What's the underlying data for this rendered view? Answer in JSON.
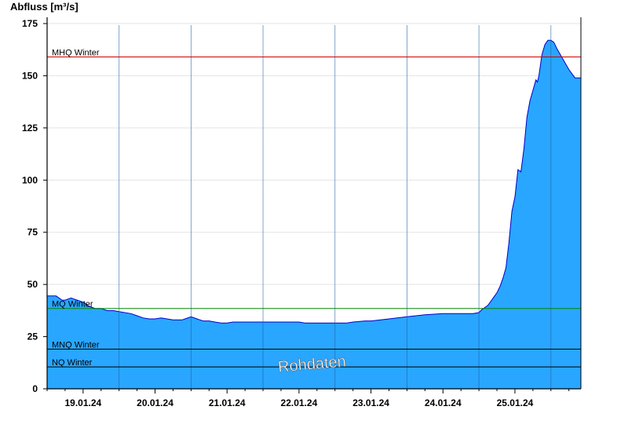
{
  "chart_data": {
    "type": "area",
    "ylabel": "Abfluss [m³/s]",
    "xlabel": "",
    "title": "",
    "ylim": [
      0,
      180
    ],
    "yticks": [
      0,
      25,
      50,
      75,
      100,
      125,
      150,
      175
    ],
    "x_start": "18.01.24 12:00",
    "x_end": "25.01.24 18:00",
    "day_labels": [
      "19.01.24",
      "20.01.24",
      "21.01.24",
      "22.01.24",
      "23.01.24",
      "24.01.24",
      "25.01.24"
    ],
    "grid": true,
    "series": [
      {
        "color": "#29a6ff",
        "edge_color": "#0000cc",
        "x_hours": [
          0,
          3,
          5,
          6,
          8,
          10,
          12,
          14,
          16,
          18,
          20,
          22,
          24,
          28,
          30,
          32,
          34,
          36,
          38,
          42,
          45,
          46,
          48,
          50,
          52,
          54,
          56,
          58,
          60,
          62,
          66,
          70,
          72,
          78,
          84,
          86,
          88,
          92,
          96,
          100,
          102,
          106,
          108,
          114,
          120,
          126,
          132,
          134,
          136,
          138,
          140,
          142,
          144,
          145,
          146,
          147,
          148,
          149,
          150,
          151,
          152,
          153,
          154,
          155,
          156,
          157,
          158,
          159,
          160,
          161,
          162,
          163,
          163.5,
          164,
          165,
          166,
          167,
          168,
          169,
          170
        ],
        "values": [
          44.5,
          44.5,
          42.5,
          42.5,
          43.5,
          42.5,
          41.5,
          39.5,
          38.5,
          38.5,
          37.5,
          37.5,
          37.0,
          36.0,
          35.0,
          34.0,
          33.5,
          33.5,
          34.0,
          33.0,
          33.0,
          33.5,
          34.5,
          33.5,
          32.5,
          32.5,
          32.0,
          31.5,
          31.5,
          32.0,
          32.0,
          32.0,
          32.0,
          32.0,
          32.0,
          31.5,
          31.5,
          31.5,
          31.5,
          31.5,
          32.0,
          32.5,
          32.5,
          33.5,
          34.5,
          35.5,
          36.0,
          36.0,
          36.0,
          36.0,
          36.0,
          36.0,
          36.5,
          38.0,
          39.0,
          40.0,
          42.0,
          44.0,
          46.0,
          49.0,
          53.0,
          58.0,
          70.0,
          85.0,
          92.0,
          105.0,
          104.0,
          115.0,
          130.0,
          138.0,
          143.0,
          148.0,
          147.0,
          150.0,
          160.0,
          165.0,
          167.0,
          167.0,
          166.0,
          163.0
        ]
      }
    ],
    "reference_lines": [
      {
        "label": "MHQ Winter",
        "value": 159,
        "color": "#cc0000"
      },
      {
        "label": "MQ Winter",
        "value": 38.5,
        "color": "#008800"
      },
      {
        "label": "MNQ Winter",
        "value": 19,
        "color": "#000000"
      },
      {
        "label": "NQ Winter",
        "value": 10.5,
        "color": "#000000"
      }
    ],
    "annotations": [
      {
        "text": "Rohdaten"
      }
    ],
    "tail_values": [
      158,
      153,
      149,
      149
    ]
  }
}
